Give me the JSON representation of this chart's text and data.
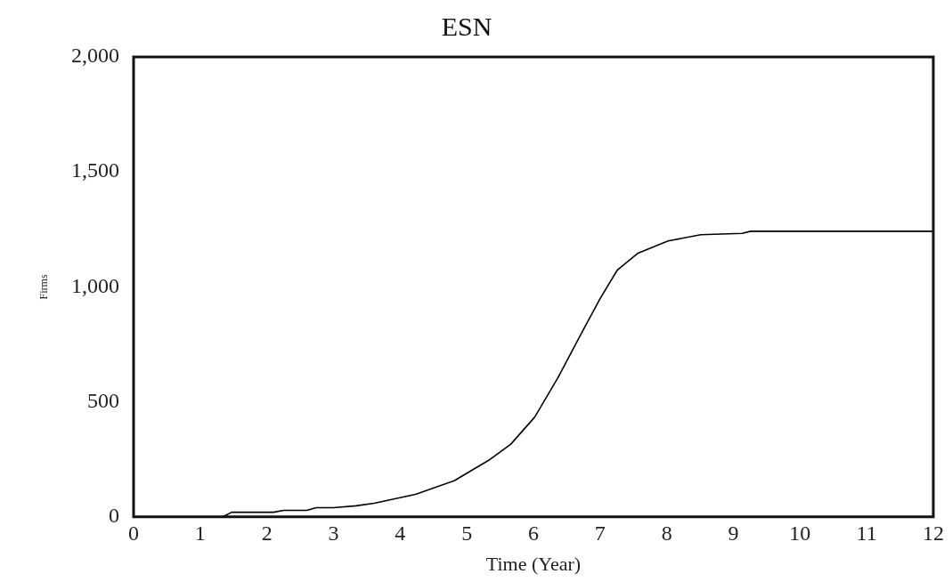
{
  "chart_data": {
    "type": "line",
    "title": "ESN",
    "xlabel": "Time (Year)",
    "ylabel": "Firms",
    "x": [
      0,
      1.34,
      1.47,
      2.1,
      2.25,
      2.6,
      2.74,
      3.0,
      3.34,
      3.61,
      4.23,
      4.81,
      5.35,
      5.66,
      6.02,
      6.37,
      6.73,
      7.0,
      7.26,
      7.57,
      8.02,
      8.51,
      9.13,
      9.26,
      12
    ],
    "series": [
      {
        "color": "#000000",
        "values": [
          0,
          0,
          20,
          20,
          28,
          28,
          40,
          40,
          48,
          59,
          98,
          157,
          250,
          316,
          434,
          606,
          804,
          949,
          1074,
          1147,
          1200,
          1227,
          1233,
          1242,
          1242
        ]
      }
    ],
    "xlim": [
      0,
      12
    ],
    "xticks": [
      0,
      1,
      2,
      3,
      4,
      5,
      6,
      7,
      8,
      9,
      10,
      11,
      12
    ],
    "ylim": [
      0,
      2000
    ],
    "yticks": [
      0,
      {
        "value": 500,
        "label": "500"
      },
      {
        "value": 1000,
        "label": "1,000"
      },
      {
        "value": 1500,
        "label": "1,500"
      },
      {
        "value": 2000,
        "label": "2,000"
      }
    ],
    "grid": false,
    "legend": false,
    "marker": "none",
    "line_style": "solid"
  }
}
